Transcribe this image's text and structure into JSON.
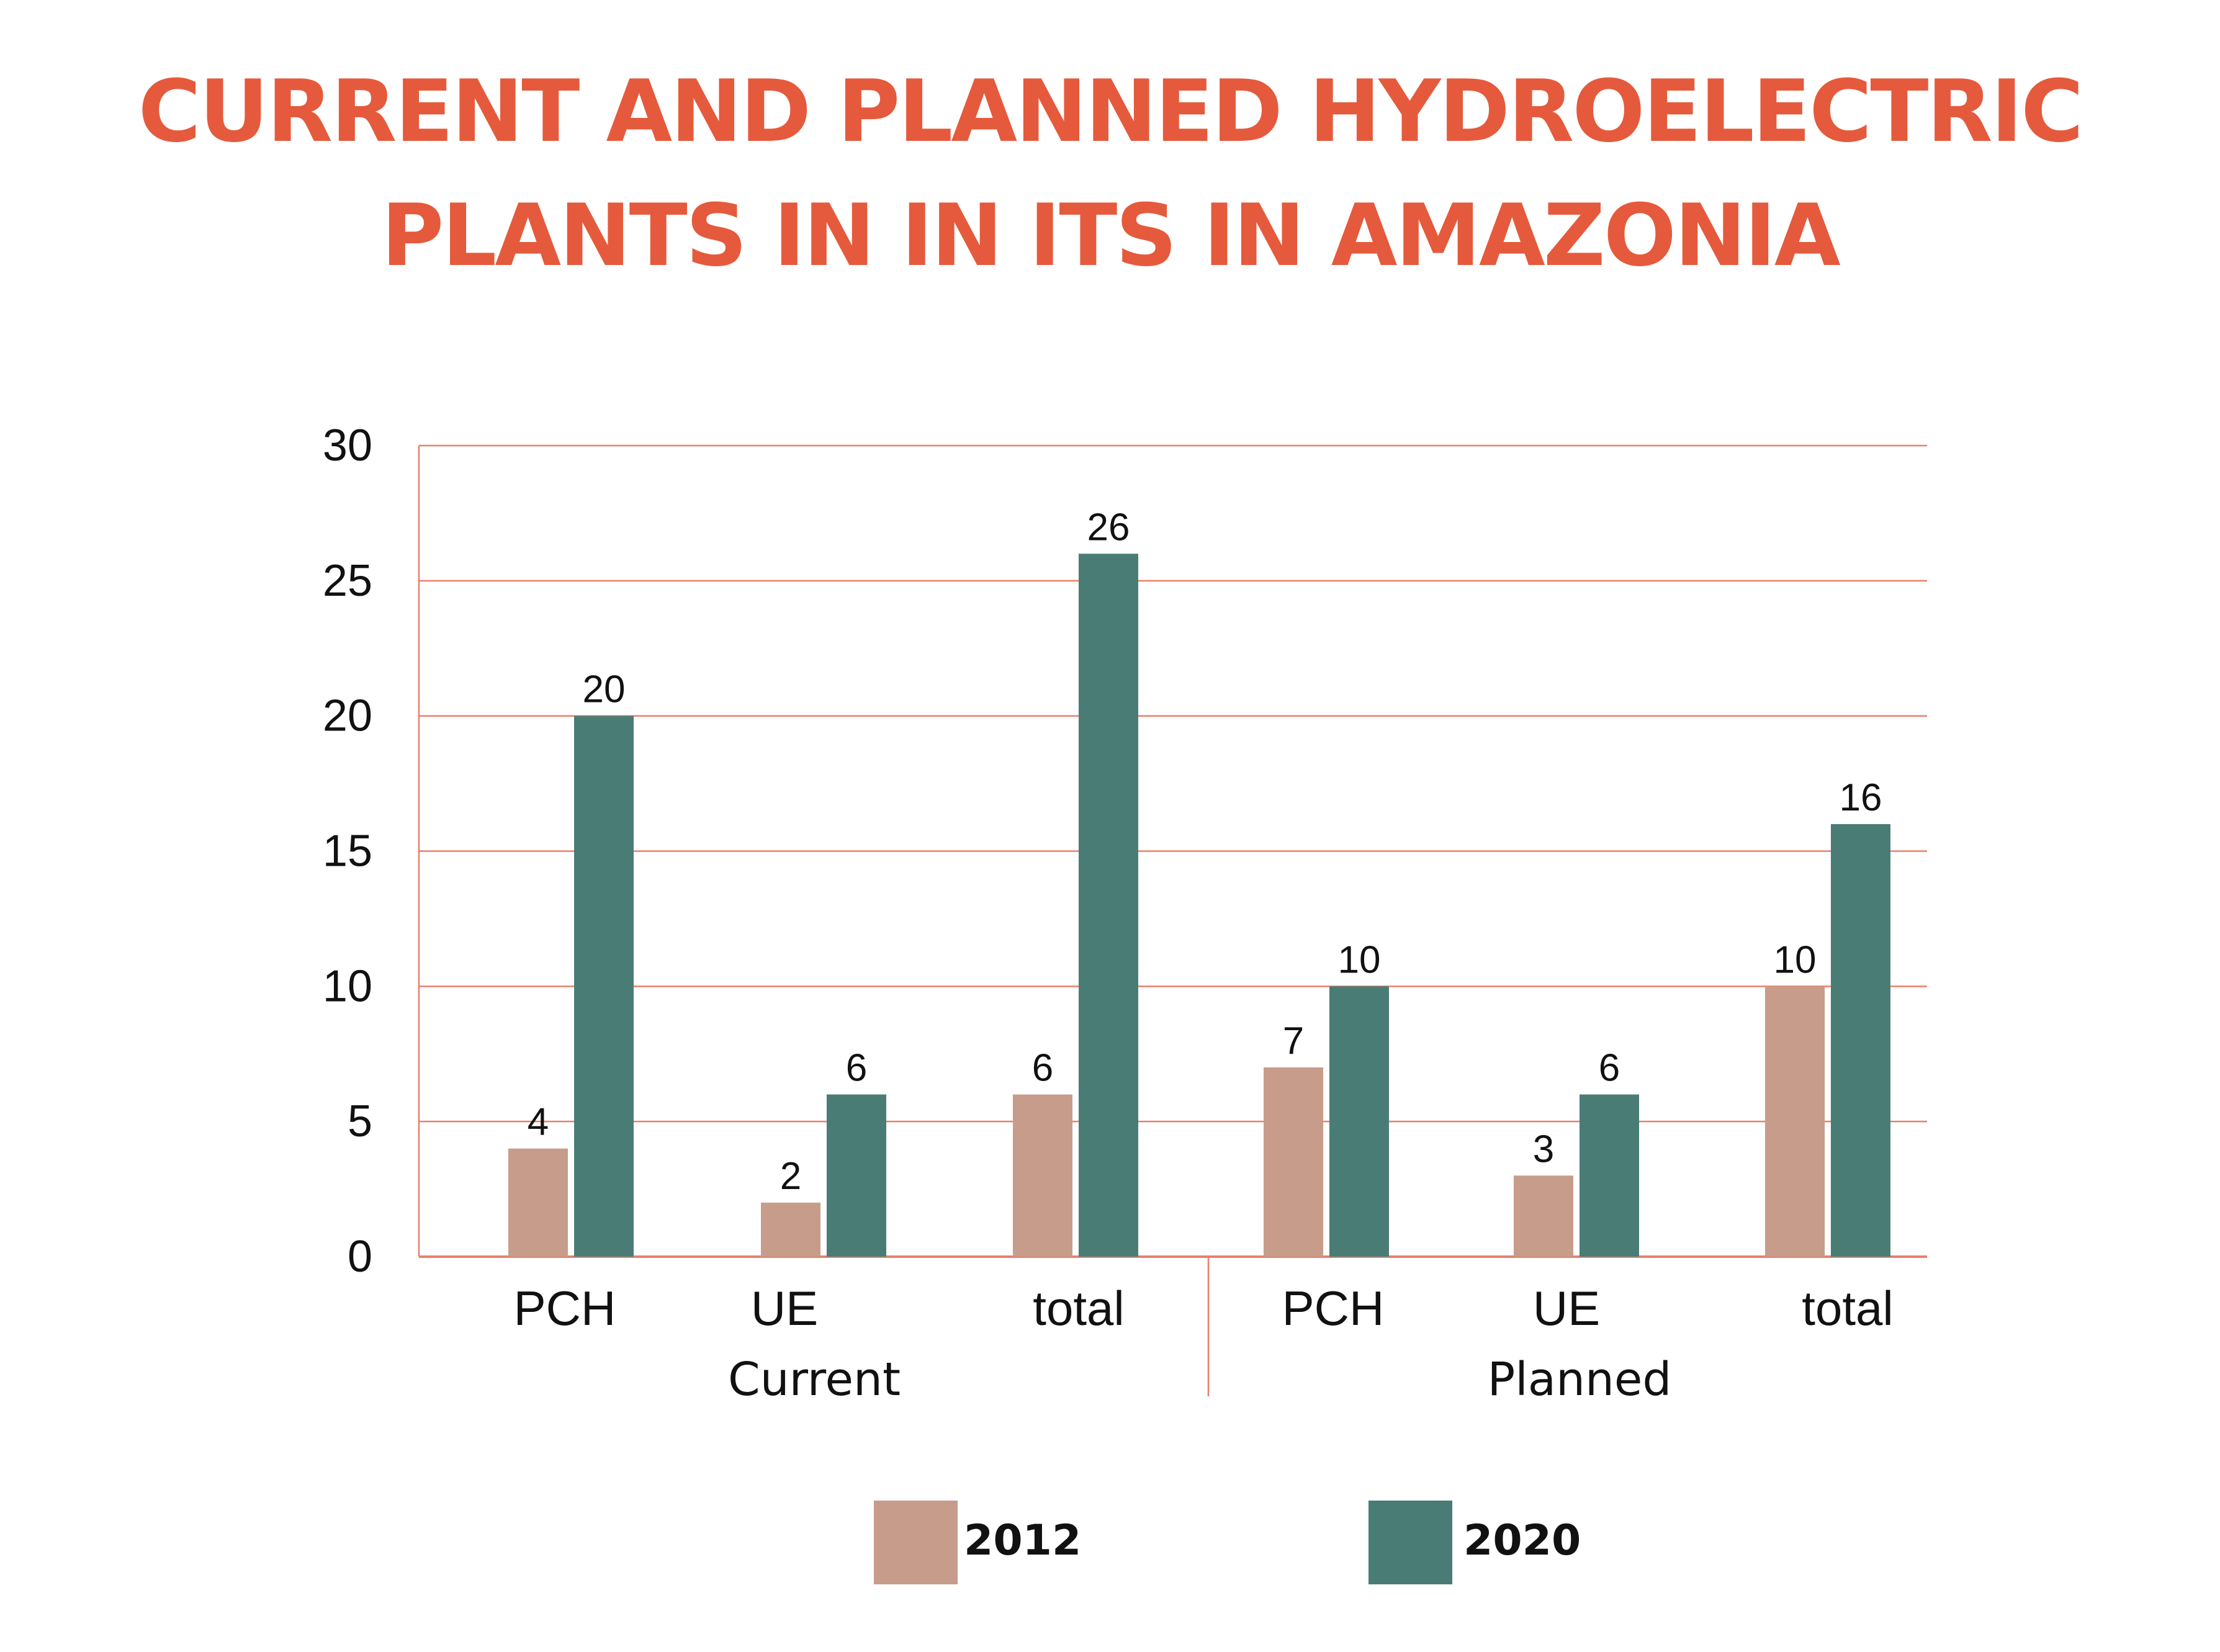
{
  "title_lines": [
    "CURRENT AND PLANNED HYDROELECTRIC",
    "PLANTS IN  IN ITS IN AMAZONIA"
  ],
  "colors": {
    "title": "#e55a3c",
    "grid": "#e8806a",
    "series_2012": "#c89c8a",
    "series_2020": "#4a7c76",
    "text": "#111111"
  },
  "chart_data": {
    "type": "bar",
    "categories": [
      "PCH",
      "UE",
      "total",
      "PCH",
      "UE",
      "total"
    ],
    "groups": [
      {
        "label": "Current",
        "categories": [
          "PCH",
          "UE",
          "total"
        ]
      },
      {
        "label": "Planned",
        "categories": [
          "PCH",
          "UE",
          "total"
        ]
      }
    ],
    "series": [
      {
        "name": "2012",
        "values": [
          4,
          2,
          6,
          7,
          3,
          10
        ]
      },
      {
        "name": "2020",
        "values": [
          20,
          6,
          26,
          10,
          6,
          16
        ]
      }
    ],
    "y_ticks": [
      0,
      5,
      10,
      15,
      20,
      25,
      30
    ],
    "ylim": [
      0,
      30
    ],
    "grid": true,
    "legend_position": "bottom"
  }
}
